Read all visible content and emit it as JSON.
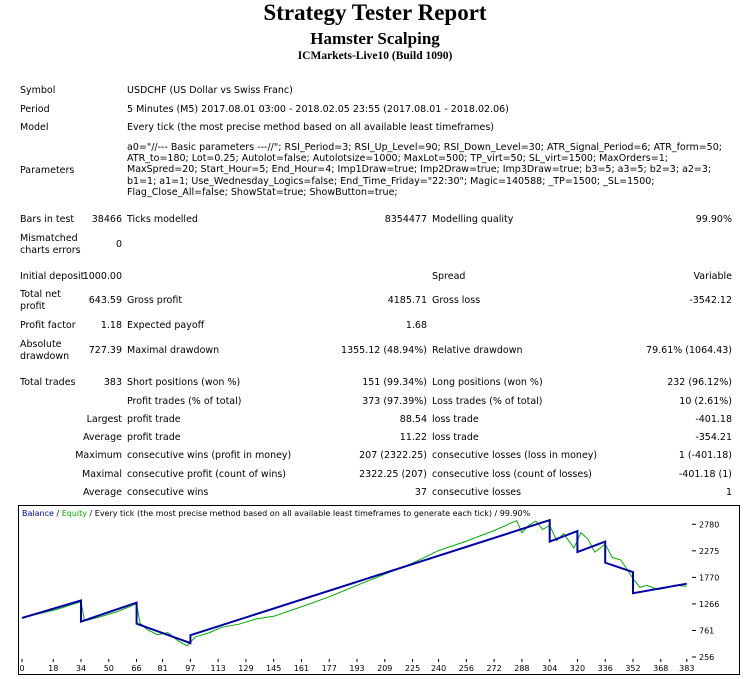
{
  "header": {
    "title": "Strategy Tester Report",
    "subtitle": "Hamster Scalping",
    "server": "ICMarkets-Live10 (Build 1090)"
  },
  "info": {
    "symbol_label": "Symbol",
    "symbol": "USDCHF (US Dollar vs Swiss Franc)",
    "period_label": "Period",
    "period": "5 Minutes (M5) 2017.08.01 03:00 - 2018.02.05 23:55 (2017.08.01 - 2018.02.06)",
    "model_label": "Model",
    "model": "Every tick (the most precise method based on all available least timeframes)",
    "parameters_label": "Parameters",
    "parameters": "a0=\"//--- Basic parameters ---//\"; RSI_Period=3; RSI_Up_Level=90; RSI_Down_Level=30; ATR_Signal_Period=6; ATR_form=50; ATR_to=180; Lot=0.25; Autolot=false; Autolotsize=1000; MaxLot=500; TP_virt=50; SL_virt=1500; MaxOrders=1; MaxSpred=20; Start_Hour=5; End_Hour=4; Imp1Draw=true; Imp2Draw=true; Imp3Draw=true; b3=5; a3=5; b2=3; a2=3; b1=1; a1=1; Use_Wednesday_Logics=false; End_Time_Friday=\"22:30\"; Magic=140588; _TP=1500; _SL=1500; Flag_Close_All=false; ShowStat=true; ShowButton=true;"
  },
  "stats": {
    "bars_label": "Bars in test",
    "bars": "38466",
    "ticks_label": "Ticks modelled",
    "ticks": "8354477",
    "quality_label": "Modelling quality",
    "quality": "99.90%",
    "mismatch_label_1": "Mismatched",
    "mismatch_label_2": "charts errors",
    "mismatch": "0",
    "deposit_label": "Initial deposit",
    "deposit": "1000.00",
    "spread_label": "Spread",
    "spread": "Variable",
    "net_label_1": "Total net",
    "net_label_2": "profit",
    "net": "643.59",
    "gross_profit_label": "Gross profit",
    "gross_profit": "4185.71",
    "gross_loss_label": "Gross loss",
    "gross_loss": "-3542.12",
    "pf_label": "Profit factor",
    "pf": "1.18",
    "payoff_label": "Expected payoff",
    "payoff": "1.68",
    "abs_dd_label_1": "Absolute",
    "abs_dd_label_2": "drawdown",
    "abs_dd": "727.39",
    "max_dd_label": "Maximal drawdown",
    "max_dd": "1355.12 (48.94%)",
    "rel_dd_label": "Relative drawdown",
    "rel_dd": "79.61% (1064.43)",
    "trades_label": "Total trades",
    "trades": "383",
    "short_label": "Short positions (won %)",
    "short": "151 (99.34%)",
    "long_label": "Long positions (won %)",
    "long": "232 (96.12%)",
    "pt_label": "Profit trades (% of total)",
    "pt": "373 (97.39%)",
    "lt_label": "Loss trades (% of total)",
    "lt": "10 (2.61%)",
    "largest_label": "Largest",
    "average_label": "Average",
    "maximum_label": "Maximum",
    "maximal_label": "Maximal",
    "profit_trade_label": "profit trade",
    "loss_trade_label": "loss trade",
    "largest_profit": "88.54",
    "largest_loss": "-401.18",
    "avg_profit": "11.22",
    "avg_loss": "-354.21",
    "cw_label": "consecutive wins (profit in money)",
    "cw": "207 (2322.25)",
    "cl_label": "consecutive losses (loss in money)",
    "cl": "1 (-401.18)",
    "cp_label": "consecutive profit (count of wins)",
    "cp": "2322.25 (207)",
    "closs_label": "consecutive loss (count of losses)",
    "closs": "-401.18 (1)",
    "avg_cw_label": "consecutive wins",
    "avg_cw": "37",
    "avg_cl_label": "consecutive losses",
    "avg_cl": "1"
  },
  "chart_data": {
    "type": "line",
    "legend": {
      "balance": "Balance",
      "sep1": " / ",
      "equity": "Equity",
      "rest": " / Every tick (the most precise method based on all available least timeframes to generate each tick) / 99.90%"
    },
    "x_ticks": [
      0,
      18,
      34,
      50,
      66,
      81,
      97,
      113,
      129,
      145,
      161,
      177,
      193,
      209,
      225,
      240,
      256,
      272,
      288,
      304,
      320,
      336,
      352,
      368,
      383
    ],
    "y_ticks": [
      2780,
      2275,
      1770,
      1266,
      761,
      256
    ],
    "ylim": [
      256,
      2880
    ],
    "xlim": [
      0,
      386
    ],
    "colors": {
      "balance": "#0000aa",
      "equity": "#00aa00"
    },
    "series": [
      {
        "name": "Balance",
        "x": [
          0,
          34,
          34,
          66,
          66,
          97,
          97,
          304,
          304,
          320,
          320,
          336,
          336,
          352,
          352,
          383
        ],
        "y": [
          1000,
          1330,
          929,
          1290,
          889,
          520,
          670,
          2860,
          2450,
          2650,
          2250,
          2450,
          2050,
          1870,
          1470,
          1650
        ]
      },
      {
        "name": "Equity",
        "x": [
          0,
          10,
          20,
          34,
          36,
          45,
          55,
          66,
          68,
          72,
          78,
          84,
          90,
          95,
          100,
          108,
          115,
          125,
          135,
          145,
          160,
          177,
          193,
          209,
          225,
          240,
          256,
          272,
          285,
          288,
          292,
          296,
          300,
          304,
          308,
          312,
          318,
          322,
          326,
          330,
          336,
          340,
          345,
          352,
          356,
          360,
          366,
          370,
          376,
          383
        ],
        "y": [
          1000,
          1080,
          1160,
          1310,
          940,
          1020,
          1120,
          1270,
          900,
          780,
          680,
          720,
          560,
          470,
          640,
          720,
          820,
          880,
          980,
          1030,
          1200,
          1400,
          1620,
          1830,
          2040,
          2280,
          2460,
          2660,
          2850,
          2620,
          2760,
          2840,
          2680,
          2760,
          2470,
          2600,
          2330,
          2620,
          2500,
          2250,
          2400,
          2150,
          2100,
          1750,
          1580,
          1620,
          1540,
          1560,
          1620,
          1600
        ]
      }
    ]
  }
}
